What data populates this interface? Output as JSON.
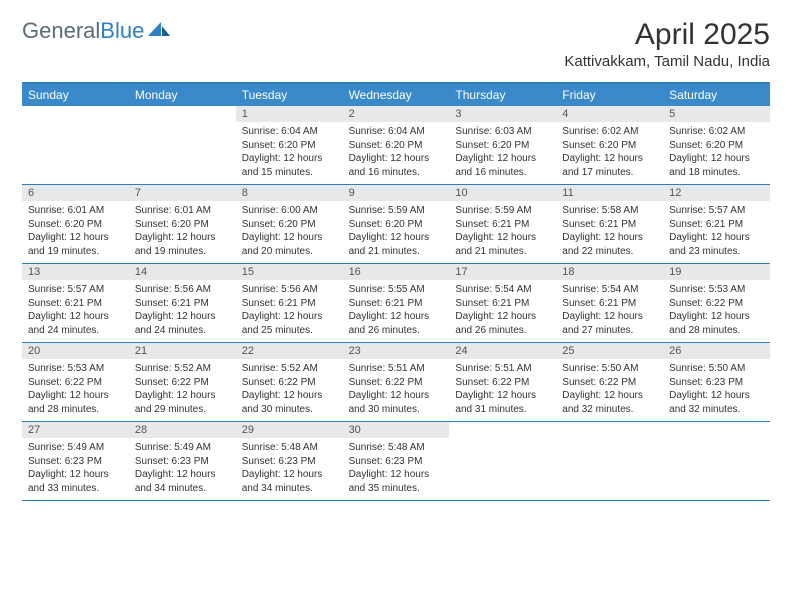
{
  "logo": {
    "text1": "General",
    "text2": "Blue"
  },
  "title": "April 2025",
  "location": "Kattivakkam, Tamil Nadu, India",
  "colors": {
    "header_bg": "#3a8acb",
    "border": "#2f7fbf",
    "daynum_bg": "#e7e8ea",
    "text": "#333333",
    "logo_gray": "#5a6b7a",
    "logo_blue": "#2f7fbf"
  },
  "weekdays": [
    "Sunday",
    "Monday",
    "Tuesday",
    "Wednesday",
    "Thursday",
    "Friday",
    "Saturday"
  ],
  "weeks": [
    [
      null,
      null,
      {
        "n": "1",
        "sr": "Sunrise: 6:04 AM",
        "ss": "Sunset: 6:20 PM",
        "dl": "Daylight: 12 hours and 15 minutes."
      },
      {
        "n": "2",
        "sr": "Sunrise: 6:04 AM",
        "ss": "Sunset: 6:20 PM",
        "dl": "Daylight: 12 hours and 16 minutes."
      },
      {
        "n": "3",
        "sr": "Sunrise: 6:03 AM",
        "ss": "Sunset: 6:20 PM",
        "dl": "Daylight: 12 hours and 16 minutes."
      },
      {
        "n": "4",
        "sr": "Sunrise: 6:02 AM",
        "ss": "Sunset: 6:20 PM",
        "dl": "Daylight: 12 hours and 17 minutes."
      },
      {
        "n": "5",
        "sr": "Sunrise: 6:02 AM",
        "ss": "Sunset: 6:20 PM",
        "dl": "Daylight: 12 hours and 18 minutes."
      }
    ],
    [
      {
        "n": "6",
        "sr": "Sunrise: 6:01 AM",
        "ss": "Sunset: 6:20 PM",
        "dl": "Daylight: 12 hours and 19 minutes."
      },
      {
        "n": "7",
        "sr": "Sunrise: 6:01 AM",
        "ss": "Sunset: 6:20 PM",
        "dl": "Daylight: 12 hours and 19 minutes."
      },
      {
        "n": "8",
        "sr": "Sunrise: 6:00 AM",
        "ss": "Sunset: 6:20 PM",
        "dl": "Daylight: 12 hours and 20 minutes."
      },
      {
        "n": "9",
        "sr": "Sunrise: 5:59 AM",
        "ss": "Sunset: 6:20 PM",
        "dl": "Daylight: 12 hours and 21 minutes."
      },
      {
        "n": "10",
        "sr": "Sunrise: 5:59 AM",
        "ss": "Sunset: 6:21 PM",
        "dl": "Daylight: 12 hours and 21 minutes."
      },
      {
        "n": "11",
        "sr": "Sunrise: 5:58 AM",
        "ss": "Sunset: 6:21 PM",
        "dl": "Daylight: 12 hours and 22 minutes."
      },
      {
        "n": "12",
        "sr": "Sunrise: 5:57 AM",
        "ss": "Sunset: 6:21 PM",
        "dl": "Daylight: 12 hours and 23 minutes."
      }
    ],
    [
      {
        "n": "13",
        "sr": "Sunrise: 5:57 AM",
        "ss": "Sunset: 6:21 PM",
        "dl": "Daylight: 12 hours and 24 minutes."
      },
      {
        "n": "14",
        "sr": "Sunrise: 5:56 AM",
        "ss": "Sunset: 6:21 PM",
        "dl": "Daylight: 12 hours and 24 minutes."
      },
      {
        "n": "15",
        "sr": "Sunrise: 5:56 AM",
        "ss": "Sunset: 6:21 PM",
        "dl": "Daylight: 12 hours and 25 minutes."
      },
      {
        "n": "16",
        "sr": "Sunrise: 5:55 AM",
        "ss": "Sunset: 6:21 PM",
        "dl": "Daylight: 12 hours and 26 minutes."
      },
      {
        "n": "17",
        "sr": "Sunrise: 5:54 AM",
        "ss": "Sunset: 6:21 PM",
        "dl": "Daylight: 12 hours and 26 minutes."
      },
      {
        "n": "18",
        "sr": "Sunrise: 5:54 AM",
        "ss": "Sunset: 6:21 PM",
        "dl": "Daylight: 12 hours and 27 minutes."
      },
      {
        "n": "19",
        "sr": "Sunrise: 5:53 AM",
        "ss": "Sunset: 6:22 PM",
        "dl": "Daylight: 12 hours and 28 minutes."
      }
    ],
    [
      {
        "n": "20",
        "sr": "Sunrise: 5:53 AM",
        "ss": "Sunset: 6:22 PM",
        "dl": "Daylight: 12 hours and 28 minutes."
      },
      {
        "n": "21",
        "sr": "Sunrise: 5:52 AM",
        "ss": "Sunset: 6:22 PM",
        "dl": "Daylight: 12 hours and 29 minutes."
      },
      {
        "n": "22",
        "sr": "Sunrise: 5:52 AM",
        "ss": "Sunset: 6:22 PM",
        "dl": "Daylight: 12 hours and 30 minutes."
      },
      {
        "n": "23",
        "sr": "Sunrise: 5:51 AM",
        "ss": "Sunset: 6:22 PM",
        "dl": "Daylight: 12 hours and 30 minutes."
      },
      {
        "n": "24",
        "sr": "Sunrise: 5:51 AM",
        "ss": "Sunset: 6:22 PM",
        "dl": "Daylight: 12 hours and 31 minutes."
      },
      {
        "n": "25",
        "sr": "Sunrise: 5:50 AM",
        "ss": "Sunset: 6:22 PM",
        "dl": "Daylight: 12 hours and 32 minutes."
      },
      {
        "n": "26",
        "sr": "Sunrise: 5:50 AM",
        "ss": "Sunset: 6:23 PM",
        "dl": "Daylight: 12 hours and 32 minutes."
      }
    ],
    [
      {
        "n": "27",
        "sr": "Sunrise: 5:49 AM",
        "ss": "Sunset: 6:23 PM",
        "dl": "Daylight: 12 hours and 33 minutes."
      },
      {
        "n": "28",
        "sr": "Sunrise: 5:49 AM",
        "ss": "Sunset: 6:23 PM",
        "dl": "Daylight: 12 hours and 34 minutes."
      },
      {
        "n": "29",
        "sr": "Sunrise: 5:48 AM",
        "ss": "Sunset: 6:23 PM",
        "dl": "Daylight: 12 hours and 34 minutes."
      },
      {
        "n": "30",
        "sr": "Sunrise: 5:48 AM",
        "ss": "Sunset: 6:23 PM",
        "dl": "Daylight: 12 hours and 35 minutes."
      },
      null,
      null,
      null
    ]
  ]
}
